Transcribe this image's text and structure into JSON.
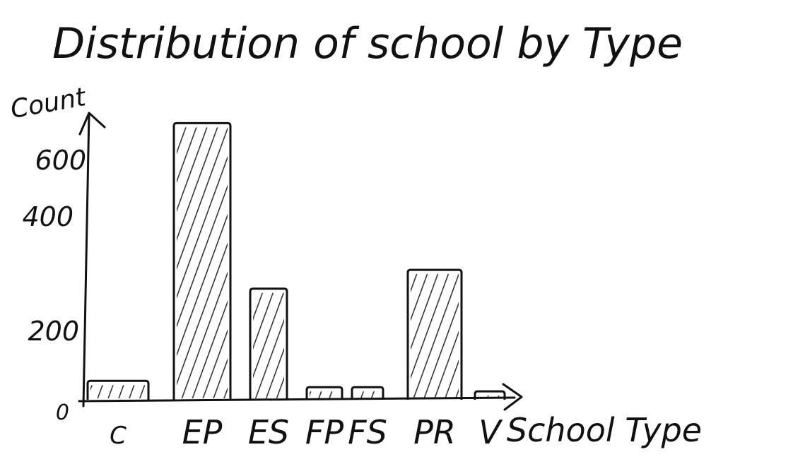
{
  "chart_data": {
    "type": "bar",
    "title": "Distribution of school by Type",
    "xlabel": "School Type",
    "ylabel": "Count",
    "categories": [
      "C",
      "EP",
      "ES",
      "FP",
      "FS",
      "PR",
      "V"
    ],
    "values": [
      45,
      660,
      265,
      30,
      30,
      310,
      20
    ],
    "yticks": [
      "0",
      "200",
      "400",
      "600"
    ],
    "ylim": [
      0,
      700
    ],
    "grid": false,
    "legend": "none",
    "bar_fill": "hatched",
    "colors": {
      "ink": "#111111",
      "background": "#ffffff"
    }
  }
}
